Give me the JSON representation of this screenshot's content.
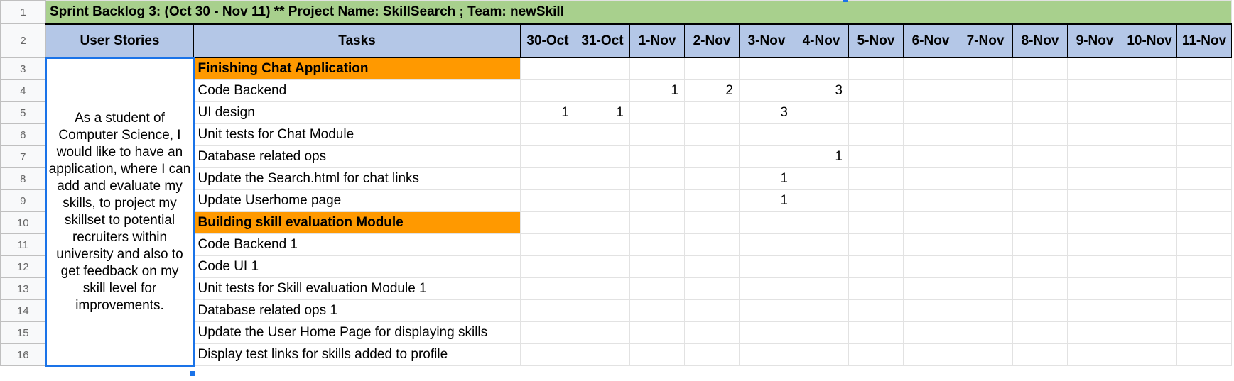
{
  "title": "Sprint Backlog 3: (Oct 30 - Nov 11)  ** Project Name: SkillSearch ; Team: newSkill",
  "headers": {
    "user_stories": "User Stories",
    "tasks": "Tasks",
    "dates": [
      "30-Oct",
      "31-Oct",
      "1-Nov",
      "2-Nov",
      "3-Nov",
      "4-Nov",
      "5-Nov",
      "6-Nov",
      "7-Nov",
      "8-Nov",
      "9-Nov",
      "10-Nov",
      "11-Nov"
    ]
  },
  "row_numbers": [
    "1",
    "2",
    "3",
    "4",
    "5",
    "6",
    "7",
    "8",
    "9",
    "10",
    "11",
    "12",
    "13",
    "14",
    "15",
    "16"
  ],
  "user_story": "As a student of Computer Science, I would like to have an application, where I can add and evaluate my skills, to project my skillset to potential recruiters within university and also to get feedback on my skill level for improvements.",
  "rows": [
    {
      "task": "Finishing Chat Application",
      "section": true,
      "values": [
        "",
        "",
        "",
        "",
        "",
        "",
        "",
        "",
        "",
        "",
        "",
        "",
        ""
      ]
    },
    {
      "task": "Code Backend",
      "section": false,
      "values": [
        "",
        "",
        "1",
        "2",
        "",
        "3",
        "",
        "",
        "",
        "",
        "",
        "",
        ""
      ]
    },
    {
      "task": "UI design",
      "section": false,
      "values": [
        "1",
        "1",
        "",
        "",
        "3",
        "",
        "",
        "",
        "",
        "",
        "",
        "",
        ""
      ]
    },
    {
      "task": "Unit tests for Chat Module",
      "section": false,
      "values": [
        "",
        "",
        "",
        "",
        "",
        "",
        "",
        "",
        "",
        "",
        "",
        "",
        ""
      ]
    },
    {
      "task": "Database related ops",
      "section": false,
      "values": [
        "",
        "",
        "",
        "",
        "",
        "1",
        "",
        "",
        "",
        "",
        "",
        "",
        ""
      ]
    },
    {
      "task": "Update the Search.html for chat links",
      "section": false,
      "values": [
        "",
        "",
        "",
        "",
        "1",
        "",
        "",
        "",
        "",
        "",
        "",
        "",
        ""
      ]
    },
    {
      "task": "Update Userhome page",
      "section": false,
      "values": [
        "",
        "",
        "",
        "",
        "1",
        "",
        "",
        "",
        "",
        "",
        "",
        "",
        ""
      ]
    },
    {
      "task": "Building skill evaluation Module",
      "section": true,
      "values": [
        "",
        "",
        "",
        "",
        "",
        "",
        "",
        "",
        "",
        "",
        "",
        "",
        ""
      ]
    },
    {
      "task": "Code Backend 1",
      "section": false,
      "values": [
        "",
        "",
        "",
        "",
        "",
        "",
        "",
        "",
        "",
        "",
        "",
        "",
        ""
      ]
    },
    {
      "task": "Code UI 1",
      "section": false,
      "values": [
        "",
        "",
        "",
        "",
        "",
        "",
        "",
        "",
        "",
        "",
        "",
        "",
        ""
      ]
    },
    {
      "task": "Unit tests for Skill evaluation Module 1",
      "section": false,
      "values": [
        "",
        "",
        "",
        "",
        "",
        "",
        "",
        "",
        "",
        "",
        "",
        "",
        ""
      ]
    },
    {
      "task": "Database related ops 1",
      "section": false,
      "values": [
        "",
        "",
        "",
        "",
        "",
        "",
        "",
        "",
        "",
        "",
        "",
        "",
        ""
      ]
    },
    {
      "task": "Update the User Home Page for displaying skills",
      "section": false,
      "values": [
        "",
        "",
        "",
        "",
        "",
        "",
        "",
        "",
        "",
        "",
        "",
        "",
        ""
      ]
    },
    {
      "task": "Display test links for skills added to profile",
      "section": false,
      "values": [
        "",
        "",
        "",
        "",
        "",
        "",
        "",
        "",
        "",
        "",
        "",
        "",
        ""
      ]
    }
  ],
  "colors": {
    "title_bg": "#a8d08d",
    "header_bg": "#b4c7e7",
    "section_bg": "#ff9900",
    "selection": "#1a73e8"
  }
}
